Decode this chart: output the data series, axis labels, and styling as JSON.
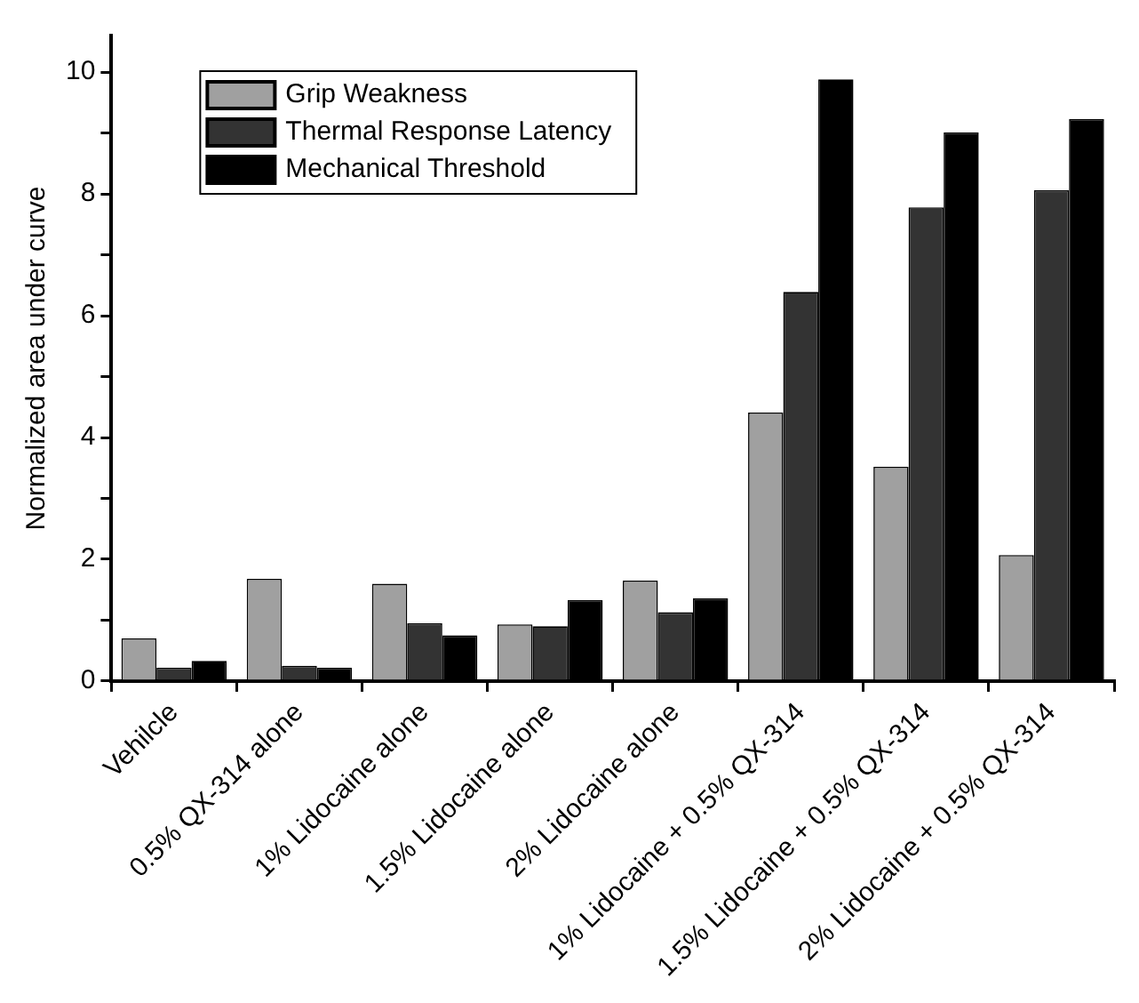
{
  "chart_data": {
    "type": "bar",
    "ylabel": "Normalized area under curve",
    "categories": [
      "Vehilcle",
      "0.5% QX-314 alone",
      "1% Lidocaine alone",
      "1.5% Lidocaine alone",
      "2% Lidocaine alone",
      "1% Lidocaine + 0.5% QX-314",
      "1.5% Lidocaine + 0.5% QX-314",
      "2% Lidocaine + 0.5% QX-314"
    ],
    "series": [
      {
        "name": "Grip Weakness",
        "color": "#a0a0a0",
        "values": [
          0.7,
          1.68,
          1.6,
          0.93,
          1.65,
          4.41,
          3.52,
          2.07
        ]
      },
      {
        "name": "Thermal Response Latency",
        "color": "#333333",
        "values": [
          0.22,
          0.25,
          0.95,
          0.9,
          1.13,
          6.39,
          7.78,
          8.06
        ]
      },
      {
        "name": "Mechanical Threshold",
        "color": "#000000",
        "values": [
          0.33,
          0.22,
          0.75,
          1.33,
          1.36,
          9.88,
          9.01,
          9.23
        ]
      }
    ],
    "ylim": [
      0,
      10.6
    ],
    "yticks": [
      0,
      {
        "value": 1,
        "label": null
      },
      2,
      {
        "value": 3,
        "label": null
      },
      4,
      {
        "value": 5,
        "label": null
      },
      6,
      {
        "value": 7,
        "label": null
      },
      8,
      {
        "value": 9,
        "label": null
      },
      10
    ],
    "grid": false,
    "legend": "top left"
  }
}
